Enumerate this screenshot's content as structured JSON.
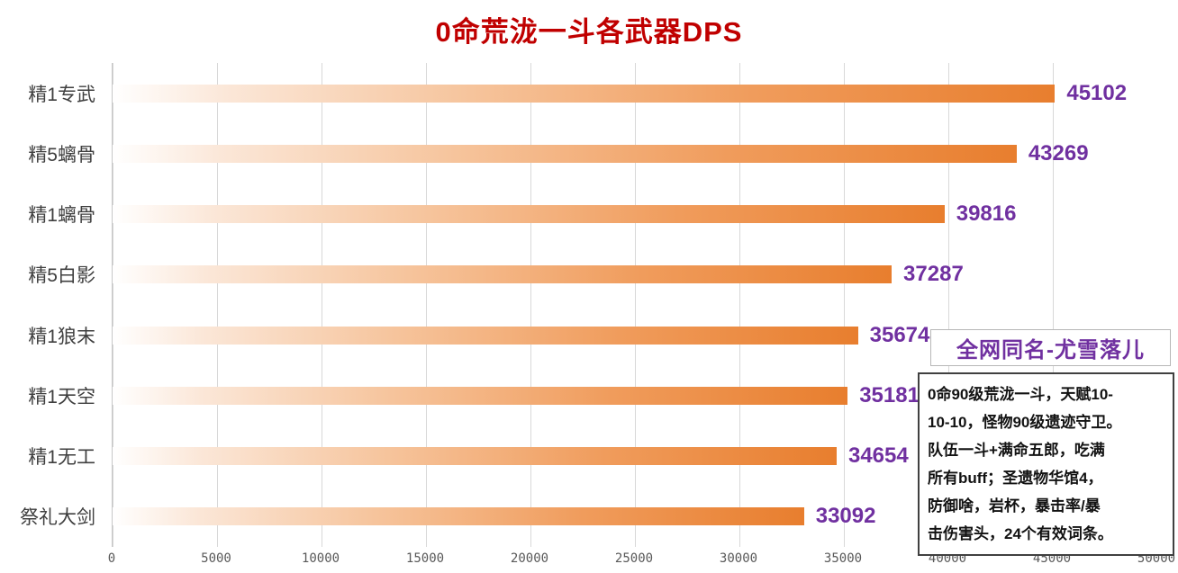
{
  "title": "0命荒泷一斗各武器DPS",
  "chart_data": {
    "type": "bar",
    "orientation": "horizontal",
    "title": "0命荒泷一斗各武器DPS",
    "categories": [
      "精1专武",
      "精5螭骨",
      "精1螭骨",
      "精5白影",
      "精1狼末",
      "精1天空",
      "精1无工",
      "祭礼大剑"
    ],
    "values": [
      45102,
      43269,
      39816,
      37287,
      35674,
      35181,
      34654,
      33092
    ],
    "xlim": [
      0,
      50000
    ],
    "x_ticks": [
      "0",
      "5000",
      "10000",
      "15000",
      "20000",
      "25000",
      "30000",
      "35000",
      "40000",
      "45000",
      "50000"
    ],
    "grid": "vertical-only",
    "legend": "none",
    "xlabel": "",
    "ylabel": ""
  },
  "watermark": {
    "text": "全网同名-尤雪落儿"
  },
  "annotation": {
    "text": "0命90级荒泷一斗，天赋10-\n10-10，怪物90级遗迹守卫。\n队伍一斗+满命五郎，吃满\n所有buff；圣遗物华馆4，\n防御啥，岩杯，暴击率/暴\n击伤害头，24个有效词条。"
  },
  "colors": {
    "title": "#C00000",
    "bar": "#ED7D31",
    "value": "#7030A0",
    "watermark": "#7030A0",
    "cat": "#3F3F3F",
    "tick": "#595959",
    "grid": "#D8D8D8",
    "axis": "#C6C6C6",
    "boxborder": "#B7B7B7",
    "annborder": "#404040"
  }
}
